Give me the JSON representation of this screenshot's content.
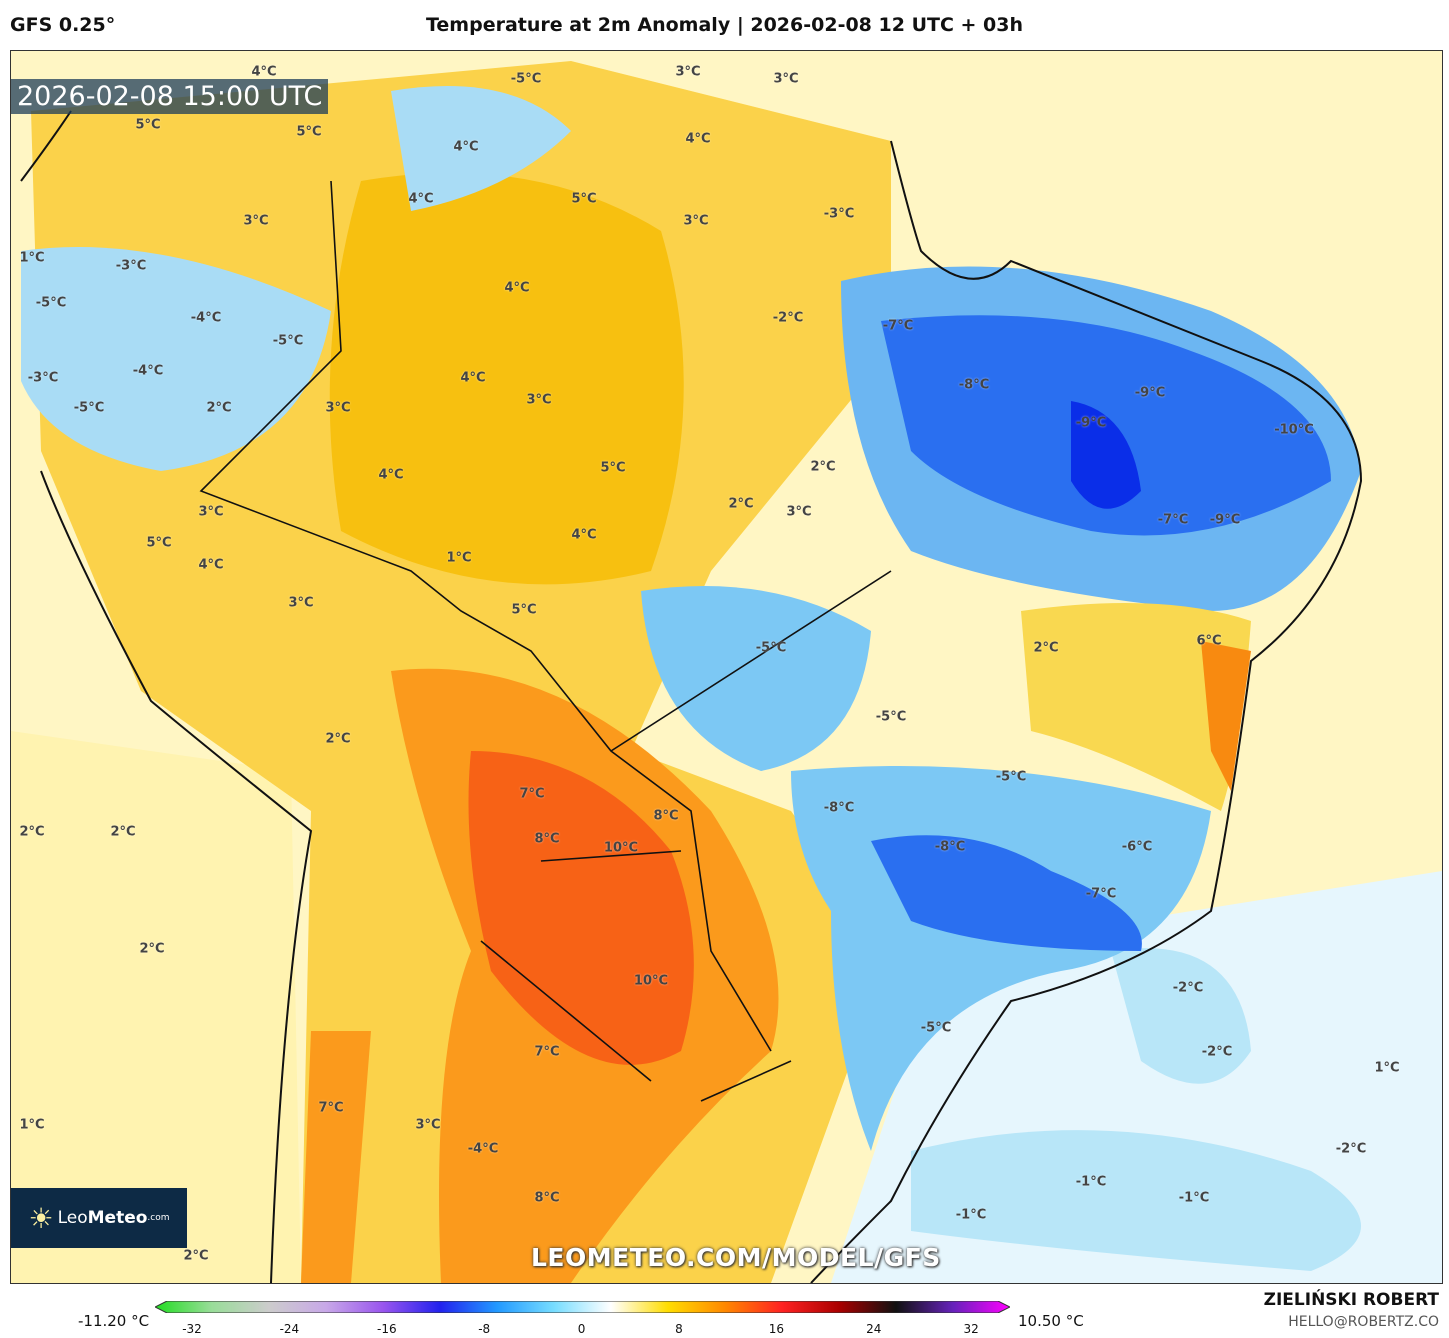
{
  "header": {
    "model": "GFS 0.25°",
    "title": "Temperature at 2m Anomaly | 2026-02-08 12 UTC + 03h"
  },
  "map": {
    "valid_time": "2026-02-08 15:00 UTC",
    "watermark": "LEOMETEO.COM/MODEL/GFS",
    "logo": {
      "leo": "Leo",
      "meteo": "Meteo",
      "com": ".com"
    },
    "labels": [
      "4°C",
      "-5°C",
      "3°C",
      "3°C",
      "5°C",
      "5°C",
      "4°C",
      "4°C",
      "5°C",
      "4°C",
      "3°C",
      "-3°C",
      "3°C",
      "1°C",
      "-3°C",
      "4°C",
      "-2°C",
      "-7°C",
      "-5°C",
      "-4°C",
      "-5°C",
      "-4°C",
      "-3°C",
      "4°C",
      "3°C",
      "-8°C",
      "-9°C",
      "-5°C",
      "2°C",
      "3°C",
      "-9°C",
      "-10°C",
      "5°C",
      "2°C",
      "4°C",
      "2°C",
      "3°C",
      "3°C",
      "-7°C",
      "-9°C",
      "4°C",
      "5°C",
      "1°C",
      "4°C",
      "3°C",
      "5°C",
      "6°C",
      "-5°C",
      "2°C",
      "-5°C",
      "2°C",
      "-5°C",
      "7°C",
      "-8°C",
      "8°C",
      "2°C",
      "2°C",
      "8°C",
      "10°C",
      "-8°C",
      "-6°C",
      "-7°C",
      "2°C",
      "10°C",
      "-2°C",
      "-5°C",
      "7°C",
      "-2°C",
      "1°C",
      "7°C",
      "1°C",
      "3°C",
      "-4°C",
      "-2°C",
      "-1°C",
      "-1°C",
      "8°C",
      "-1°C",
      "2°C"
    ]
  },
  "colorbar": {
    "min_label": "-11.20 °C",
    "max_label": "10.50 °C",
    "ticks": [
      "-32",
      "-24",
      "-16",
      "-8",
      "0",
      "8",
      "16",
      "24",
      "32"
    ],
    "colors": [
      "#22dd22",
      "#99dd99",
      "#cccccc",
      "#c8a8e8",
      "#9955ee",
      "#2222ee",
      "#2299ff",
      "#77ddff",
      "#ffffff",
      "#ffdd00",
      "#ff8800",
      "#ff2222",
      "#aa0000",
      "#111111",
      "#6622bb",
      "#ff00ff"
    ]
  },
  "footer": {
    "author": "ZIELIŃSKI ROBERT",
    "email": "HELLO@ROBERTZ.CO"
  }
}
